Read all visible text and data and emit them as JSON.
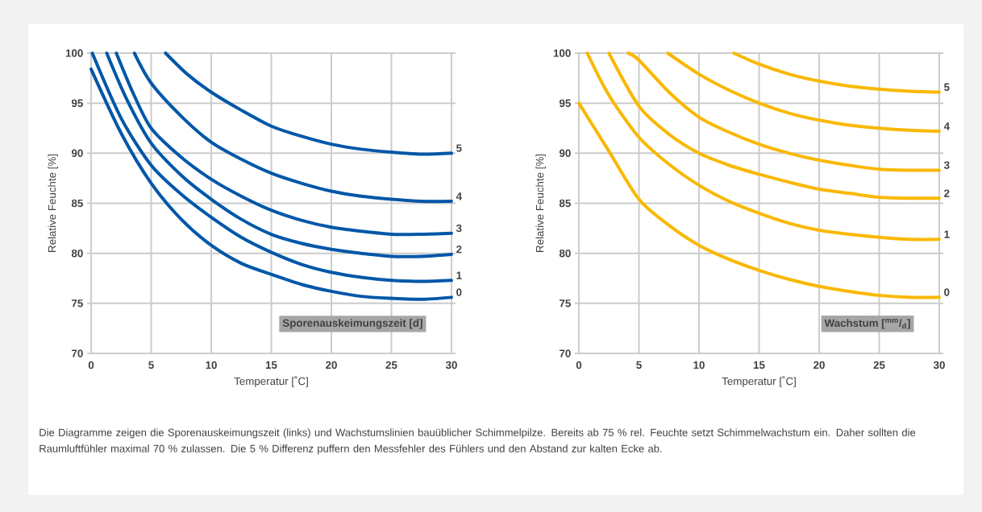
{
  "chart_data": [
    {
      "type": "line",
      "xlabel": "Temperatur [˚C]",
      "ylabel": "Relative Feuchte [%]",
      "xlim": [
        0,
        30
      ],
      "ylim": [
        70,
        100
      ],
      "xticks": [
        0,
        5,
        10,
        15,
        20,
        25,
        30
      ],
      "yticks": [
        70,
        75,
        80,
        85,
        90,
        95,
        100
      ],
      "grid": true,
      "series": [
        {
          "name": "0",
          "color": "#0057a8",
          "x": [
            0,
            2.5,
            5,
            7.5,
            10,
            12.5,
            15,
            17.5,
            20,
            22.5,
            25,
            27.5,
            30
          ],
          "values": [
            98.4,
            92,
            87,
            83.4,
            80.8,
            79,
            77.9,
            76.9,
            76.2,
            75.7,
            75.5,
            75.4,
            75.6
          ]
        },
        {
          "name": "1",
          "color": "#0057a8",
          "x": [
            0.1,
            2.5,
            5,
            7.5,
            10,
            12.5,
            15,
            17.5,
            20,
            22.5,
            25,
            27.5,
            30
          ],
          "values": [
            100,
            93.5,
            88.8,
            85.9,
            83.6,
            81.6,
            80.1,
            78.9,
            78.1,
            77.6,
            77.3,
            77.2,
            77.3
          ]
        },
        {
          "name": "2",
          "color": "#0057a8",
          "x": [
            1.3,
            3,
            5,
            7.5,
            10,
            12.5,
            15,
            17.5,
            20,
            22.5,
            25,
            27.5,
            30
          ],
          "values": [
            100,
            95.3,
            91,
            87.8,
            85.4,
            83.4,
            81.9,
            81,
            80.4,
            80,
            79.7,
            79.7,
            79.9
          ]
        },
        {
          "name": "3",
          "color": "#0057a8",
          "x": [
            2.1,
            3.5,
            5,
            7.5,
            10,
            12.5,
            15,
            17.5,
            20,
            22.5,
            25,
            27.5,
            30
          ],
          "values": [
            100,
            96,
            92.5,
            89.6,
            87.4,
            85.7,
            84.3,
            83.3,
            82.6,
            82.2,
            81.9,
            81.9,
            82
          ]
        },
        {
          "name": "4",
          "color": "#0057a8",
          "x": [
            3.6,
            5,
            7.5,
            10,
            12.5,
            15,
            17.5,
            20,
            22.5,
            25,
            27.5,
            30
          ],
          "values": [
            100,
            97,
            93.7,
            91.1,
            89.4,
            88,
            87,
            86.2,
            85.7,
            85.4,
            85.2,
            85.2
          ]
        },
        {
          "name": "5",
          "color": "#0057a8",
          "x": [
            6.2,
            8,
            10,
            12.5,
            15,
            17.5,
            20,
            22.5,
            25,
            27.5,
            30
          ],
          "values": [
            100,
            97.9,
            96.1,
            94.3,
            92.7,
            91.7,
            90.9,
            90.4,
            90.1,
            89.9,
            90
          ]
        }
      ],
      "annotations": [
        "Sporenauskeimungszeit [d]",
        "Die Diagramme zeigen die Sporenauskeimungszeit (links) und Wachstumslinien bauüblicher Schimmelpilze. Bereits ab 75 % rel. Feuchte setzt Schimmelwachstum ein. Daher sollten die Raumluftfühler maximal 70 % zulassen. Die 5 % Differenz puffern den Messfehler des Fühlers und den Abstand zur kalten Ecke ab."
      ]
    },
    {
      "type": "line",
      "xlabel": "Temperatur [˚C]",
      "ylabel": "Relative Feuchte [%]",
      "xlim": [
        0,
        30
      ],
      "ylim": [
        70,
        100
      ],
      "xticks": [
        0,
        5,
        10,
        15,
        20,
        25,
        30
      ],
      "yticks": [
        70,
        75,
        80,
        85,
        90,
        95,
        100
      ],
      "grid": true,
      "series": [
        {
          "name": "0",
          "color": "#f9b800",
          "x": [
            0,
            2.5,
            5,
            7.5,
            10,
            12.5,
            15,
            17.5,
            20,
            22.5,
            25,
            27.5,
            30
          ],
          "values": [
            95,
            90.2,
            85.4,
            82.8,
            80.8,
            79.4,
            78.3,
            77.4,
            76.7,
            76.2,
            75.8,
            75.6,
            75.6
          ]
        },
        {
          "name": "1",
          "color": "#f9b800",
          "x": [
            0.7,
            2.5,
            5,
            7.5,
            10,
            12.5,
            15,
            17.5,
            20,
            22.5,
            25,
            27.5,
            30
          ],
          "values": [
            100,
            95.8,
            91.6,
            88.9,
            86.8,
            85.2,
            84,
            83,
            82.3,
            81.9,
            81.6,
            81.4,
            81.4
          ]
        },
        {
          "name": "2",
          "color": "#f9b800",
          "x": [
            2.5,
            5,
            7.5,
            10,
            12.5,
            15,
            17.5,
            20,
            22.5,
            25,
            27.5,
            30
          ],
          "values": [
            100,
            94.7,
            91.9,
            90,
            88.8,
            87.9,
            87.1,
            86.4,
            86,
            85.6,
            85.5,
            85.5
          ]
        },
        {
          "name": "3",
          "color": "#f9b800",
          "x": [
            4.1,
            5,
            7.5,
            10,
            12.5,
            15,
            17.5,
            20,
            22.5,
            25,
            27.5,
            30
          ],
          "values": [
            100,
            99.3,
            96.1,
            93.6,
            92.1,
            90.9,
            90,
            89.3,
            88.8,
            88.4,
            88.3,
            88.3
          ]
        },
        {
          "name": "4",
          "color": "#f9b800",
          "x": [
            7.4,
            10,
            12.5,
            15,
            17.5,
            20,
            22.5,
            25,
            27.5,
            30
          ],
          "values": [
            100,
            97.9,
            96.3,
            95,
            94,
            93.3,
            92.8,
            92.5,
            92.3,
            92.2
          ]
        },
        {
          "name": "5",
          "color": "#f9b800",
          "x": [
            12.9,
            15,
            17.5,
            20,
            22.5,
            25,
            27.5,
            30
          ],
          "values": [
            100,
            98.9,
            97.9,
            97.2,
            96.7,
            96.4,
            96.2,
            96.1
          ]
        }
      ],
      "annotations": [
        "Wachstum [$^{mm}$/$_{d}$]"
      ]
    }
  ]
}
